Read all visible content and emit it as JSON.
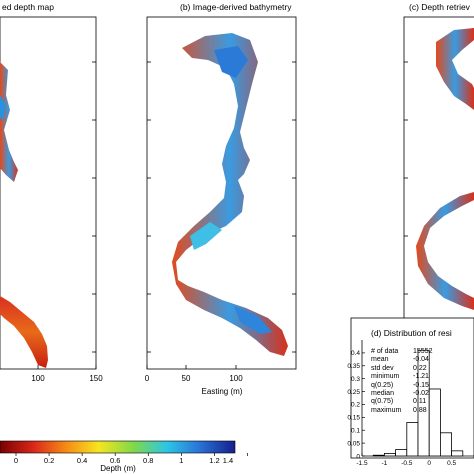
{
  "panels": {
    "a": {
      "title": "ed depth map",
      "xticks": [
        "100",
        "150"
      ]
    },
    "b": {
      "title": "(b) Image-derived bathymetry",
      "xticks": [
        "0",
        "50",
        "100"
      ],
      "xlabel": "Easting (m)"
    },
    "c": {
      "title": "(c) Depth retriev"
    },
    "d": {
      "title": "(d) Distribution of resi"
    }
  },
  "colorbar": {
    "label": "Depth (m)",
    "ticks": [
      "0",
      "0.2",
      "0.4",
      "0.6",
      "0.8",
      "1",
      "1.2",
      "1.4"
    ],
    "colors": [
      "#8b0000",
      "#d62a14",
      "#f57f16",
      "#f4e21e",
      "#7fd84a",
      "#2cc8e8",
      "#2a74d8",
      "#1a2a9a"
    ]
  },
  "histogram_stats": [
    {
      "key": "# of data",
      "value": "15552"
    },
    {
      "key": "mean",
      "value": "-0.04"
    },
    {
      "key": "std dev",
      "value": "0.22"
    },
    {
      "key": "minimum",
      "value": "-1.21"
    },
    {
      "key": "q(0.25)",
      "value": "-0.15"
    },
    {
      "key": "median",
      "value": "-0.02"
    },
    {
      "key": "q(0.75)",
      "value": "0.11"
    },
    {
      "key": "maximum",
      "value": "0.88"
    }
  ],
  "chart_data": {
    "type": "bar",
    "title": "(d) Distribution of resi",
    "xlim": [
      -1.5,
      1.0
    ],
    "ylim": [
      0,
      0.45
    ],
    "xticks": [
      "-1.5",
      "-1",
      "-0.5",
      "0",
      "0.5"
    ],
    "yticks": [
      "0",
      "0.05",
      "0.1",
      "0.15",
      "0.2",
      "0.25",
      "0.3",
      "0.35",
      "0.4"
    ],
    "bin_edges": [
      -1.25,
      -1.0,
      -0.75,
      -0.5,
      -0.25,
      0.0,
      0.25,
      0.5,
      0.75
    ],
    "values": [
      0.003,
      0.01,
      0.025,
      0.13,
      0.41,
      0.26,
      0.09,
      0.02
    ]
  }
}
